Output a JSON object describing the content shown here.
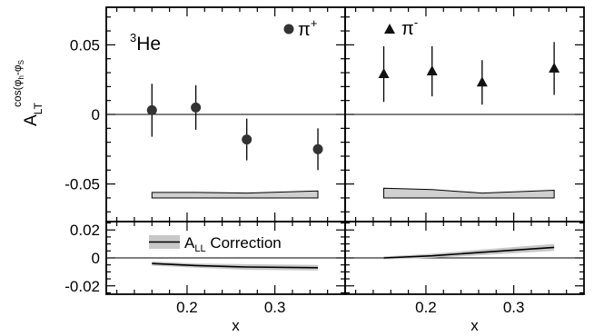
{
  "chart_data": [
    {
      "panel": "top-left",
      "type": "scatter",
      "target_label": "He",
      "target_superscript": "3",
      "legend_label": "π",
      "legend_superscript": "+",
      "marker": "circle",
      "ylabel": "A",
      "ylabel_sub": "LT",
      "ylabel_sup": "cos(φ -φ )",
      "ylabel_sup_subs": [
        "h",
        "S"
      ],
      "yticks": [
        "0.05",
        "0",
        "-0.05"
      ],
      "ylim": [
        -0.077,
        0.077
      ],
      "xlim": [
        0.108,
        0.38
      ],
      "points": [
        {
          "x": 0.16,
          "y": 0.003,
          "err": 0.019
        },
        {
          "x": 0.21,
          "y": 0.005,
          "err": 0.016
        },
        {
          "x": 0.268,
          "y": -0.018,
          "err": 0.015
        },
        {
          "x": 0.349,
          "y": -0.025,
          "err": 0.015
        }
      ],
      "systematic_band": {
        "x": [
          0.16,
          0.21,
          0.268,
          0.349
        ],
        "lower": [
          -0.06,
          -0.06,
          -0.06,
          -0.06
        ],
        "upper": [
          -0.056,
          -0.056,
          -0.0565,
          -0.055
        ]
      }
    },
    {
      "panel": "top-right",
      "type": "scatter",
      "legend_label": "π",
      "legend_superscript": "-",
      "marker": "triangle",
      "ylim": [
        -0.077,
        0.077
      ],
      "xlim": [
        0.108,
        0.38
      ],
      "points": [
        {
          "x": 0.152,
          "y": 0.029,
          "err": 0.02
        },
        {
          "x": 0.207,
          "y": 0.031,
          "err": 0.018
        },
        {
          "x": 0.264,
          "y": 0.023,
          "err": 0.016
        },
        {
          "x": 0.346,
          "y": 0.033,
          "err": 0.019
        }
      ],
      "systematic_band": {
        "x": [
          0.152,
          0.207,
          0.264,
          0.346
        ],
        "lower": [
          -0.06,
          -0.06,
          -0.06,
          -0.06
        ],
        "upper": [
          -0.053,
          -0.054,
          -0.0565,
          -0.0545
        ]
      }
    },
    {
      "panel": "bottom-left",
      "type": "line",
      "legend_label": "A",
      "legend_sub": "LL",
      "legend_rest": " Correction",
      "xlabel": "x",
      "yticks": [
        "0.02",
        "0",
        "-0.02"
      ],
      "xticks": [
        "0.2",
        "0.3"
      ],
      "ylim": [
        -0.026,
        0.026
      ],
      "xlim": [
        0.108,
        0.38
      ],
      "line": {
        "x": [
          0.16,
          0.21,
          0.268,
          0.349
        ],
        "y": [
          -0.004,
          -0.0055,
          -0.0065,
          -0.007
        ]
      },
      "band": {
        "x": [
          0.16,
          0.21,
          0.268,
          0.349
        ],
        "lower": [
          -0.0055,
          -0.007,
          -0.0085,
          -0.009
        ],
        "upper": [
          -0.0025,
          -0.004,
          -0.0045,
          -0.005
        ]
      }
    },
    {
      "panel": "bottom-right",
      "type": "line",
      "xlabel": "x",
      "xticks": [
        "0.2",
        "0.3"
      ],
      "ylim": [
        -0.026,
        0.026
      ],
      "xlim": [
        0.108,
        0.38
      ],
      "line": {
        "x": [
          0.152,
          0.207,
          0.264,
          0.346
        ],
        "y": [
          0.0,
          0.0015,
          0.004,
          0.0075
        ]
      },
      "band": {
        "x": [
          0.152,
          0.207,
          0.264,
          0.346
        ],
        "lower": [
          -0.001,
          0.0,
          0.002,
          0.005
        ],
        "upper": [
          0.001,
          0.003,
          0.006,
          0.01
        ]
      }
    }
  ],
  "colors": {
    "axis": "#000000",
    "band_fill": "#cfcfcf",
    "ll_band_fill": "#c8c8c8"
  }
}
